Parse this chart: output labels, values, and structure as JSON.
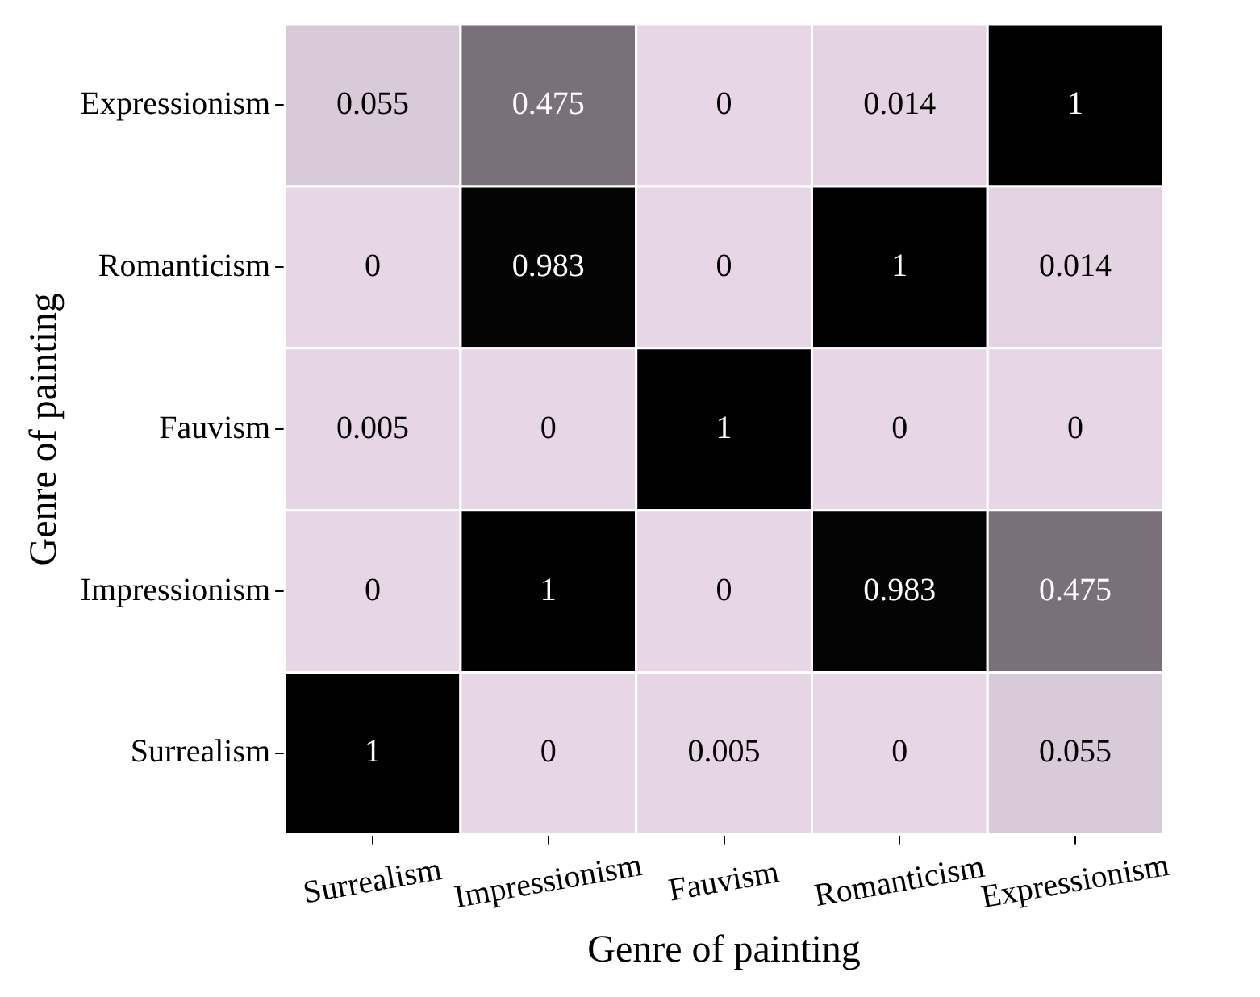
{
  "chart_data": {
    "type": "heatmap",
    "xlabel": "Genre of painting",
    "ylabel": "Genre of painting",
    "categories": [
      "Surrealism",
      "Impressionism",
      "Fauvism",
      "Romanticism",
      "Expressionism"
    ],
    "y_categories": [
      "Expressionism",
      "Romanticism",
      "Fauvism",
      "Impressionism",
      "Surrealism"
    ],
    "cells": [
      [
        0.055,
        0.475,
        0,
        0.014,
        1
      ],
      [
        0,
        0.983,
        0,
        1,
        0.014
      ],
      [
        0.005,
        0,
        1,
        0,
        0
      ],
      [
        0,
        1,
        0,
        0.983,
        0.475
      ],
      [
        1,
        0,
        0.005,
        0,
        0.055
      ]
    ],
    "colors": [
      "#e6d6e6",
      "#000000"
    ],
    "data_labels": true
  }
}
